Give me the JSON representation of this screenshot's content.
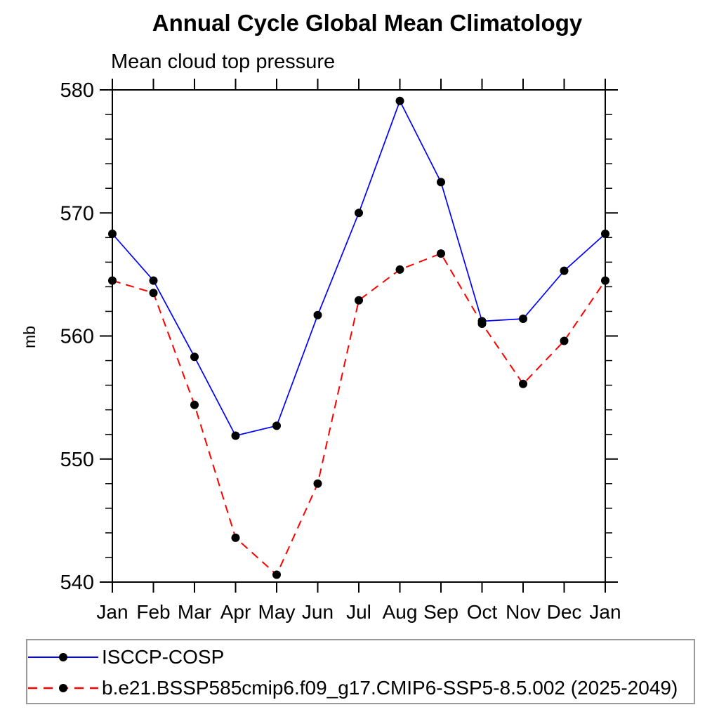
{
  "title": "Annual Cycle Global Mean Climatology",
  "subtitle": "Mean cloud top pressure",
  "chart_data": {
    "type": "line",
    "title": "Annual Cycle Global Mean Climatology",
    "subtitle": "Mean cloud top pressure",
    "ylabel": "mb",
    "xlabel": "",
    "x_categories": [
      "Jan",
      "Feb",
      "Mar",
      "Apr",
      "May",
      "Jun",
      "Jul",
      "Aug",
      "Sep",
      "Oct",
      "Nov",
      "Dec",
      "Jan"
    ],
    "ylim": [
      540,
      580
    ],
    "y_major_ticks": [
      540,
      550,
      560,
      570,
      580
    ],
    "y_minor_step": 2,
    "grid": false,
    "legend_position": "bottom",
    "axis_color": "#000000",
    "series": [
      {
        "name": "ISCCP-COSP",
        "color": "#0000ff",
        "line_style": "solid",
        "marker": "filled-circle",
        "marker_color": "#000000",
        "values": [
          568.3,
          564.5,
          558.3,
          551.9,
          552.7,
          561.7,
          570.0,
          579.1,
          572.5,
          561.2,
          561.4,
          565.3,
          568.3
        ]
      },
      {
        "name": "b.e21.BSSP585cmip6.f09_g17.CMIP6-SSP5-8.5.002 (2025-2049)",
        "color": "#ff0000",
        "line_style": "dashed",
        "marker": "filled-circle",
        "marker_color": "#000000",
        "values": [
          564.5,
          563.5,
          554.4,
          543.6,
          540.6,
          548.0,
          562.9,
          565.4,
          566.7,
          561.0,
          556.1,
          559.6,
          564.5
        ]
      }
    ]
  }
}
